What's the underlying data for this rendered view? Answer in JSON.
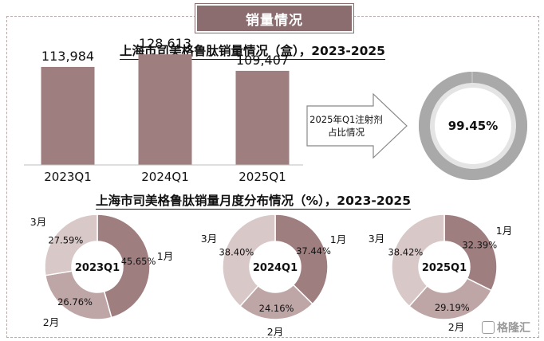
{
  "header": {
    "title": "销量情况"
  },
  "colors": {
    "bar": "#9f7e80",
    "donut_dark": "#9f7e80",
    "donut_mid": "#bea5a6",
    "donut_light": "#d9c8c8",
    "ring_dark": "#bdbdbd",
    "ring_light": "#e0e0e0",
    "header_bg": "#8b6d70"
  },
  "bar_section": {
    "title": "上海市司美格鲁肽销量情况（盒），2023-2025"
  },
  "arrow": {
    "label_line1": "2025年Q1注射剂",
    "label_line2": "占比情况"
  },
  "ratio": {
    "value_label": "99.45%",
    "value": 99.45
  },
  "donut_section": {
    "title": "上海市司美格鲁肽销量月度分布情况（%），2023-2025"
  },
  "watermark": {
    "text": "格隆汇"
  },
  "chart_data": [
    {
      "type": "bar",
      "title": "上海市司美格鲁肽销量情况（盒），2023-2025",
      "categories": [
        "2023Q1",
        "2024Q1",
        "2025Q1"
      ],
      "values": [
        113984,
        128613,
        109407
      ],
      "value_labels": [
        "113,984",
        "128,613",
        "109,407"
      ],
      "ylim": [
        0,
        140000
      ],
      "grid": false
    },
    {
      "type": "pie",
      "title": "2023Q1",
      "center_label": "2023Q1",
      "categories": [
        "1月",
        "2月",
        "3月"
      ],
      "values": [
        45.65,
        26.76,
        27.59
      ],
      "value_labels": [
        "45.65%",
        "26.76%",
        "27.59%"
      ]
    },
    {
      "type": "pie",
      "title": "2024Q1",
      "center_label": "2024Q1",
      "categories": [
        "1月",
        "2月",
        "3月"
      ],
      "values": [
        37.44,
        24.16,
        38.4
      ],
      "value_labels": [
        "37.44%",
        "24.16%",
        "38.40%"
      ]
    },
    {
      "type": "pie",
      "title": "2025Q1",
      "center_label": "2025Q1",
      "categories": [
        "1月",
        "2月",
        "3月"
      ],
      "values": [
        32.39,
        29.19,
        38.42
      ],
      "value_labels": [
        "32.39%",
        "29.19%",
        "38.42%"
      ]
    }
  ]
}
